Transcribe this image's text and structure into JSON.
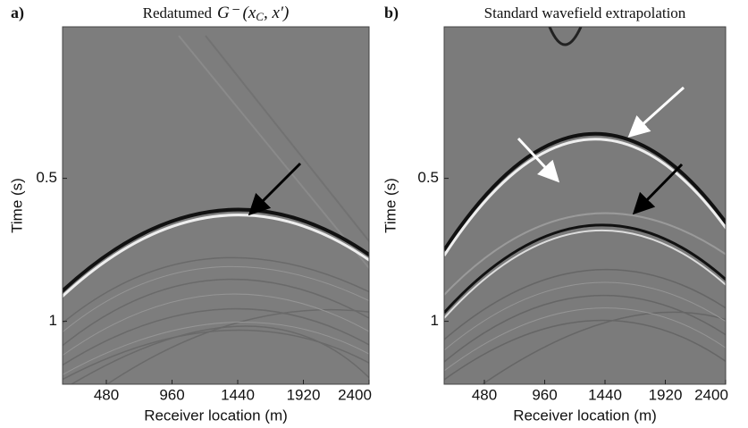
{
  "chart_data": [
    {
      "type": "image",
      "label": "a)",
      "title": "Redatumed",
      "title_math": "G⁻ (x",
      "title_math_sub": "C",
      "title_math_end": ", x′)",
      "xlabel": "Receiver location (m)",
      "ylabel": "Time (s)",
      "xlim": [
        160,
        2400
      ],
      "xticks": [
        480,
        960,
        1440,
        1920,
        2400
      ],
      "ylim": [
        -0.03,
        1.22
      ],
      "yticks": [
        0.5,
        1
      ]
    },
    {
      "type": "image",
      "label": "b)",
      "title": "Standard wavefield extrapolation",
      "xlabel": "Receiver location (m)",
      "ylabel": "Time (s)",
      "xlim": [
        160,
        2400
      ],
      "xticks": [
        480,
        960,
        1440,
        1920,
        2400
      ],
      "ylim": [
        -0.03,
        1.22
      ],
      "yticks": [
        0.5,
        1
      ]
    }
  ]
}
